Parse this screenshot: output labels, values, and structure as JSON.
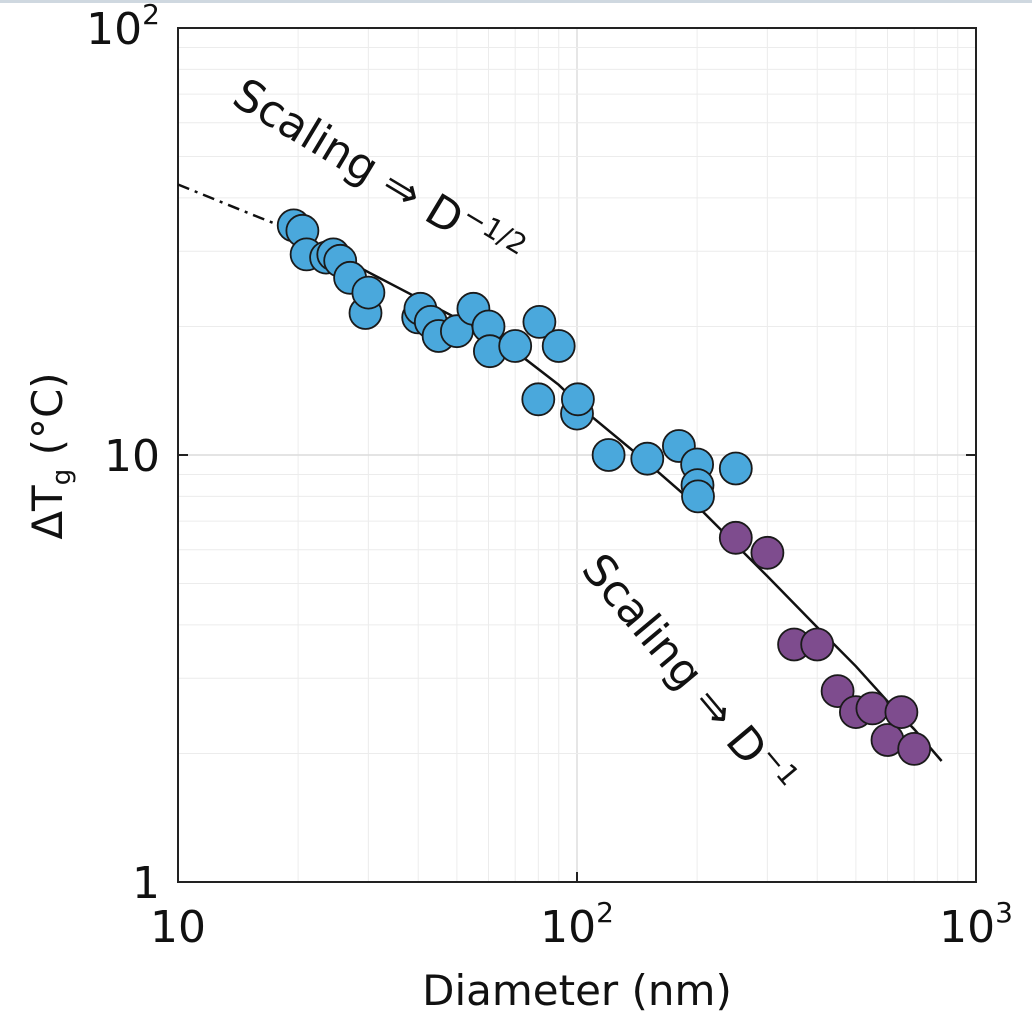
{
  "chart_data": {
    "type": "scatter",
    "title": "",
    "xlabel": "Diameter (nm)",
    "ylabel_main": "ΔT",
    "ylabel_sub": "g",
    "ylabel_unit": " (°C)",
    "x_scale": "log",
    "y_scale": "log",
    "xlim": [
      10,
      1000
    ],
    "ylim": [
      1,
      100
    ],
    "grid": true,
    "x_ticks": [
      {
        "value": 10,
        "base": "10",
        "exp": ""
      },
      {
        "value": 100,
        "base": "10",
        "exp": "2"
      },
      {
        "value": 1000,
        "base": "10",
        "exp": "3"
      }
    ],
    "y_ticks": [
      {
        "value": 1,
        "base": "1",
        "exp": ""
      },
      {
        "value": 10,
        "base": "10",
        "exp": ""
      },
      {
        "value": 100,
        "base": "10",
        "exp": "2"
      }
    ],
    "series": [
      {
        "color": "#4aa8dc",
        "points": [
          [
            19.5,
            34.5
          ],
          [
            20.5,
            33.5
          ],
          [
            21,
            29.5
          ],
          [
            23.5,
            29
          ],
          [
            24.5,
            29.5
          ],
          [
            25.5,
            28.5
          ],
          [
            27,
            26
          ],
          [
            29.5,
            21.5
          ],
          [
            30,
            24
          ],
          [
            40,
            21
          ],
          [
            40.5,
            22
          ],
          [
            43,
            20.5
          ],
          [
            45,
            19
          ],
          [
            50,
            19.5
          ],
          [
            55,
            22
          ],
          [
            60,
            20
          ],
          [
            60.5,
            17.5
          ],
          [
            70,
            18
          ],
          [
            80,
            13.5
          ],
          [
            80.5,
            20.5
          ],
          [
            90,
            18
          ],
          [
            100,
            12.5
          ],
          [
            100.5,
            13.5
          ],
          [
            120,
            10
          ],
          [
            150,
            9.8
          ],
          [
            180,
            10.5
          ],
          [
            200,
            9.5
          ],
          [
            200.5,
            8.5
          ],
          [
            201,
            8
          ],
          [
            250,
            9.3
          ]
        ]
      },
      {
        "color": "#7e4c8e",
        "points": [
          [
            250,
            6.4
          ],
          [
            300,
            5.9
          ],
          [
            350,
            3.6
          ],
          [
            400,
            3.6
          ],
          [
            450,
            2.8
          ],
          [
            500,
            2.5
          ],
          [
            550,
            2.55
          ],
          [
            600,
            2.15
          ],
          [
            650,
            2.5
          ],
          [
            700,
            2.05
          ]
        ]
      }
    ],
    "fit_line": {
      "dashed_points": [
        [
          10,
          43
        ],
        [
          16,
          36
        ],
        [
          19,
          33.8
        ]
      ],
      "solid_points": [
        [
          19,
          33.8
        ],
        [
          30,
          26.8
        ],
        [
          50,
          20.9
        ],
        [
          70,
          17.5
        ],
        [
          90,
          14.6
        ],
        [
          110,
          12.2
        ],
        [
          150,
          9.6
        ],
        [
          200,
          7.6
        ],
        [
          300,
          5.2
        ],
        [
          400,
          3.95
        ],
        [
          500,
          3.2
        ],
        [
          600,
          2.65
        ],
        [
          700,
          2.28
        ],
        [
          820,
          1.92
        ]
      ]
    },
    "annotations": [
      {
        "id": "upper",
        "text": "Scaling ⇒ D",
        "exp": "−1/2"
      },
      {
        "id": "lower",
        "text": "Scaling ⇒ D",
        "exp": "−1"
      }
    ]
  }
}
